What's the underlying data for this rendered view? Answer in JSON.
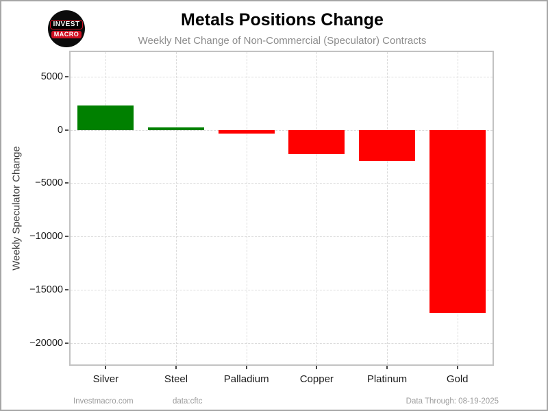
{
  "header": {
    "title": "Metals Positions Change",
    "subtitle": "Weekly Net Change of Non-Commercial (Speculator) Contracts",
    "logo": {
      "line1": "INVEST",
      "line2": "MACRO"
    }
  },
  "footer": {
    "site": "Investmacro.com",
    "source": "data:cftc",
    "data_through": "Data Through: 08-19-2025"
  },
  "chart_data": {
    "type": "bar",
    "title": "Metals Positions Change",
    "subtitle": "Weekly Net Change of Non-Commercial (Speculator) Contracts",
    "categories": [
      "Silver",
      "Steel",
      "Palladium",
      "Copper",
      "Platinum",
      "Gold"
    ],
    "values": [
      2300,
      200,
      -350,
      -2300,
      -2900,
      -17200
    ],
    "xlabel": "",
    "ylabel": "Weekly Speculator Change",
    "ylim": [
      -22000,
      7300
    ],
    "yticks": [
      {
        "value": 5000,
        "label": "5000"
      },
      {
        "value": 0,
        "label": "0"
      },
      {
        "value": -5000,
        "label": "−5000"
      },
      {
        "value": -10000,
        "label": "−10000"
      },
      {
        "value": -15000,
        "label": "−15000"
      },
      {
        "value": -20000,
        "label": "−20000"
      }
    ],
    "grid": "dashed, horizontal at yticks and vertical at category centers",
    "legend": "none",
    "positive_color": "#008000",
    "negative_color": "#ff0000",
    "bar_width_ratio": 0.8
  }
}
